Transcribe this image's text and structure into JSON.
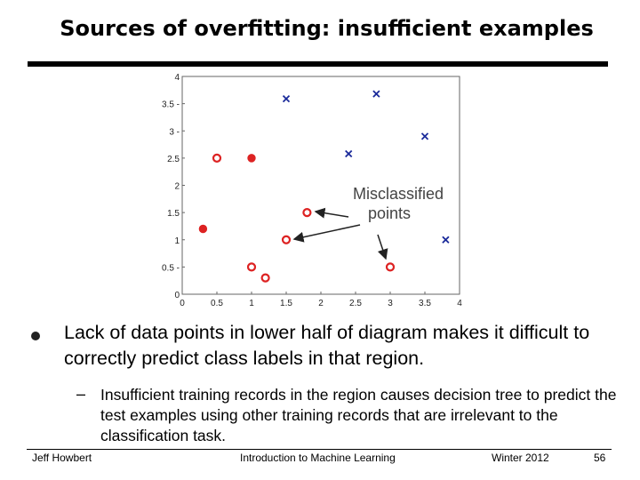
{
  "slide": {
    "title": "Sources of overfitting: insufficient examples",
    "bullet": "Lack of data points in lower half of diagram makes it difficult to correctly predict class labels in that region.",
    "sub_bullet_marker": "–",
    "sub_bullet": "Insufficient training records in the region causes decision tree to predict the test examples using other training records that are irrelevant to the classification task."
  },
  "footer": {
    "author": "Jeff Howbert",
    "course": "Introduction to Machine Learning",
    "term": "Winter 2012",
    "page": "56"
  },
  "chart_data": {
    "type": "scatter",
    "xlim": [
      0,
      4
    ],
    "ylim": [
      0,
      4
    ],
    "x_ticks": [
      "0",
      "0.5",
      "1",
      "1.5",
      "2",
      "2.5",
      "3",
      "3.5",
      "4"
    ],
    "y_ticks": [
      "0",
      "0.5 -",
      "1",
      "1.5",
      "2",
      "2.5",
      "3 -",
      "3.5 -",
      "4"
    ],
    "grid": false,
    "colors": {
      "red": "#dd2222",
      "blue": "#1a2a9a"
    },
    "series": [
      {
        "marker": "x",
        "color": "blue",
        "points": [
          [
            1.5,
            3.59
          ],
          [
            2.8,
            3.68
          ],
          [
            3.5,
            2.9
          ],
          [
            2.4,
            2.58
          ],
          [
            3.8,
            1.0
          ]
        ]
      },
      {
        "marker": "o",
        "color": "red",
        "points": [
          [
            0.5,
            2.5
          ],
          [
            1.8,
            1.5
          ],
          [
            1.5,
            1.0
          ],
          [
            1.0,
            0.5
          ],
          [
            1.2,
            0.3
          ],
          [
            3.0,
            0.5
          ]
        ]
      },
      {
        "marker": "dot",
        "color": "red",
        "points": [
          [
            1.0,
            2.5
          ],
          [
            0.3,
            1.2
          ]
        ]
      }
    ],
    "annotation": {
      "text_lines": [
        "Misclassified",
        "points"
      ]
    }
  }
}
